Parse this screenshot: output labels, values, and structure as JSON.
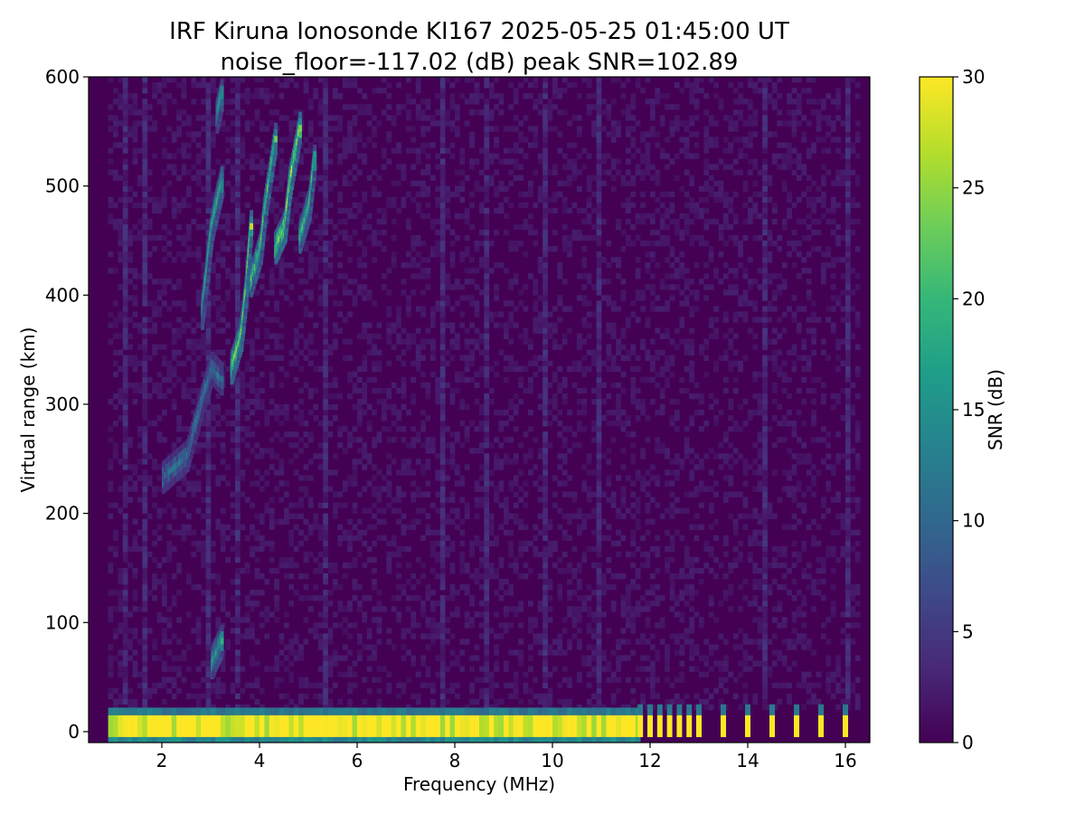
{
  "chart_data": {
    "type": "heatmap",
    "title_line1": "IRF Kiruna Ionosonde KI167 2025-05-25 01:45:00  UT",
    "title_line2": "noise_floor=-117.02 (dB) peak SNR=102.89",
    "xlabel": "Frequency (MHz)",
    "ylabel": "Virtual range (km)",
    "colorbar_label": "SNR (dB)",
    "xlim": [
      0.5,
      16.5
    ],
    "ylim": [
      -10,
      600
    ],
    "clim": [
      0,
      30
    ],
    "x_ticks": [
      2,
      4,
      6,
      8,
      10,
      12,
      14,
      16
    ],
    "y_ticks": [
      0,
      100,
      200,
      300,
      400,
      500,
      600
    ],
    "colorbar_ticks": [
      0,
      5,
      10,
      15,
      20,
      25,
      30
    ],
    "colormap": [
      "#440154",
      "#482878",
      "#3e4989",
      "#31688e",
      "#26828e",
      "#1f9e89",
      "#35b779",
      "#6ece58",
      "#b5de2b",
      "#fde725"
    ],
    "data_freq_range_mhz": [
      0.9,
      16.2
    ],
    "ground_echo": {
      "range_km": [
        -5,
        15
      ],
      "continuous_until_mhz": 11.7,
      "discrete_channels_mhz": [
        11.8,
        12.0,
        12.2,
        12.4,
        12.6,
        12.8,
        13.0,
        13.5,
        14.0,
        14.5,
        15.0,
        15.5,
        16.0
      ]
    },
    "traces": [
      {
        "f": [
          2.0,
          2.5,
          2.8,
          3.0,
          3.2
        ],
        "r": [
          230,
          250,
          300,
          330,
          320
        ],
        "snr": 12
      },
      {
        "f": [
          2.8,
          2.9,
          3.0,
          3.1,
          3.2
        ],
        "r": [
          380,
          420,
          460,
          480,
          500
        ],
        "snr": 20
      },
      {
        "f": [
          3.4,
          3.6,
          3.7,
          3.8
        ],
        "r": [
          330,
          360,
          400,
          460
        ],
        "snr": 26
      },
      {
        "f": [
          3.8,
          4.0,
          4.1,
          4.3
        ],
        "r": [
          410,
          440,
          480,
          540
        ],
        "snr": 24
      },
      {
        "f": [
          4.3,
          4.5,
          4.6,
          4.8
        ],
        "r": [
          440,
          460,
          500,
          550
        ],
        "snr": 28
      },
      {
        "f": [
          4.8,
          5.0,
          5.1
        ],
        "r": [
          450,
          480,
          520
        ],
        "snr": 22
      },
      {
        "f": [
          3.0,
          3.2
        ],
        "r": [
          60,
          80
        ],
        "snr": 18
      },
      {
        "f": [
          3.1,
          3.2
        ],
        "r": [
          560,
          580
        ],
        "snr": 18
      }
    ]
  }
}
